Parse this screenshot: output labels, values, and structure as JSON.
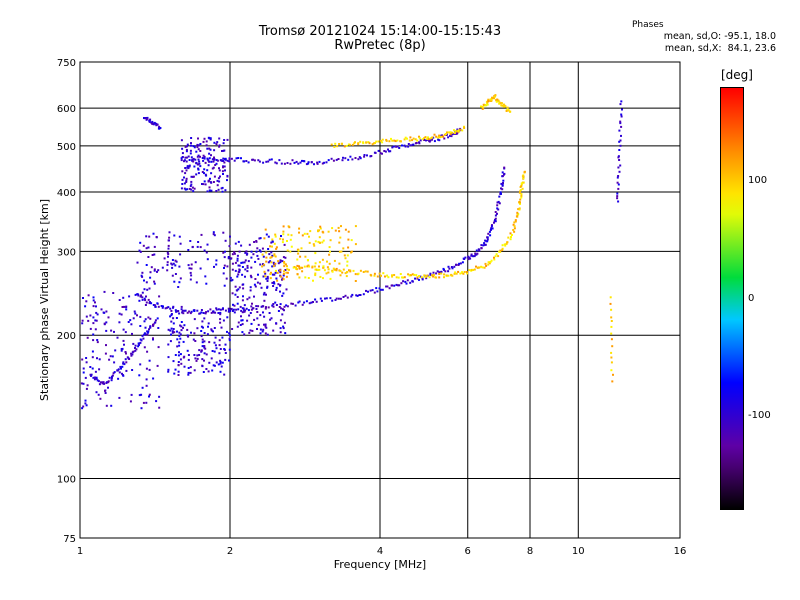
{
  "chart_data": {
    "type": "scatter",
    "title": "Tromsø 20121024 15:14:00-15:15:43",
    "subtitle": "RwPretec (8p)",
    "xlabel": "Frequency [MHz]",
    "ylabel": "Stationary phase Virtual Height [km]",
    "xscale": "log",
    "yscale": "log",
    "xlim": [
      1,
      16
    ],
    "ylim": [
      75,
      750
    ],
    "xticks": [
      1,
      2,
      4,
      6,
      8,
      10,
      16
    ],
    "yticks": [
      75,
      100,
      200,
      300,
      400,
      500,
      600,
      750
    ],
    "grid": true,
    "colorbar": {
      "label": "[deg]",
      "range": [
        -180,
        180
      ],
      "ticks": [
        100,
        0,
        -100
      ]
    },
    "stats_title": "Phases",
    "stats": [
      "mean, sd,O: -95.1, 18.0",
      "mean, sd,X:  84.1, 23.6"
    ],
    "traces": [
      {
        "x": [
          1.05,
          1.12,
          1.2,
          1.28,
          1.35,
          1.42
        ],
        "y": [
          165,
          158,
          170,
          185,
          200,
          215
        ],
        "phase": -100
      },
      {
        "x": [
          1.3,
          1.4,
          1.55,
          1.7,
          1.9,
          2.2,
          2.6,
          3.0,
          3.5,
          4.0,
          4.5,
          5.0,
          5.5,
          6.0,
          6.3,
          6.6,
          6.8,
          7.0,
          7.1
        ],
        "y": [
          245,
          232,
          226,
          224,
          225,
          228,
          232,
          236,
          242,
          250,
          258,
          266,
          276,
          290,
          300,
          320,
          350,
          400,
          450
        ],
        "phase": -100
      },
      {
        "x": [
          2.7,
          3.0,
          3.5,
          4.0,
          4.5,
          5.0,
          5.5,
          6.0,
          6.5,
          7.0,
          7.4,
          7.6,
          7.7,
          7.8
        ],
        "y": [
          280,
          277,
          272,
          268,
          266,
          266,
          268,
          272,
          280,
          300,
          330,
          370,
          410,
          440
        ],
        "phase": 100
      },
      {
        "x": [
          1.6,
          1.8,
          2.0,
          2.3,
          2.7,
          3.0,
          3.5,
          4.0,
          4.5,
          5.0,
          5.5,
          5.8
        ],
        "y": [
          470,
          470,
          468,
          465,
          462,
          462,
          470,
          485,
          500,
          512,
          525,
          540
        ],
        "phase": -100
      },
      {
        "x": [
          3.2,
          3.6,
          4.0,
          4.5,
          5.0,
          5.5,
          5.9
        ],
        "y": [
          500,
          505,
          510,
          515,
          520,
          530,
          545
        ],
        "phase": 100
      },
      {
        "x": [
          1.35,
          1.4,
          1.45
        ],
        "y": [
          570,
          560,
          545
        ],
        "phase": -100
      },
      {
        "x": [
          6.4,
          6.6,
          6.8,
          7.0,
          7.3
        ],
        "y": [
          600,
          620,
          635,
          610,
          590
        ],
        "phase": 100
      },
      {
        "x": [
          12.0,
          12.1,
          12.2
        ],
        "y": [
          380,
          480,
          620
        ],
        "phase": -100
      },
      {
        "x": [
          11.6,
          11.7
        ],
        "y": [
          240,
          160
        ],
        "phase": 100
      }
    ],
    "clusters": [
      {
        "x": [
          1.0,
          1.45
        ],
        "y": [
          140,
          250
        ],
        "phase": -100
      },
      {
        "x": [
          1.5,
          2.0
        ],
        "y": [
          165,
          230
        ],
        "phase": -100
      },
      {
        "x": [
          1.6,
          2.0
        ],
        "y": [
          400,
          520
        ],
        "phase": -100
      },
      {
        "x": [
          1.3,
          2.6
        ],
        "y": [
          250,
          330
        ],
        "phase": -100
      },
      {
        "x": [
          2.0,
          2.6
        ],
        "y": [
          200,
          300
        ],
        "phase": -100
      },
      {
        "x": [
          2.3,
          3.6
        ],
        "y": [
          260,
          340
        ],
        "phase": 100
      }
    ]
  }
}
